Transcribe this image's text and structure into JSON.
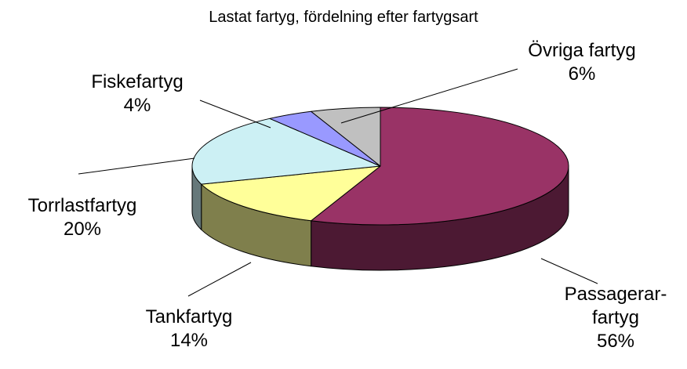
{
  "chart_data": {
    "type": "pie3d",
    "title": "Lastat fartyg, fördelning efter fartygsart",
    "categories": [
      "Passagerar-\nfartyg",
      "Tankfartyg",
      "Torrlastfartyg",
      "Fiskefartyg",
      "Övriga fartyg"
    ],
    "values": [
      56,
      14,
      20,
      4,
      6
    ],
    "value_labels": [
      "56%",
      "14%",
      "20%",
      "4%",
      "6%"
    ],
    "colors": [
      "#993366",
      "#ffff99",
      "#ccf0f4",
      "#9999ff",
      "#c0c0c0"
    ]
  }
}
